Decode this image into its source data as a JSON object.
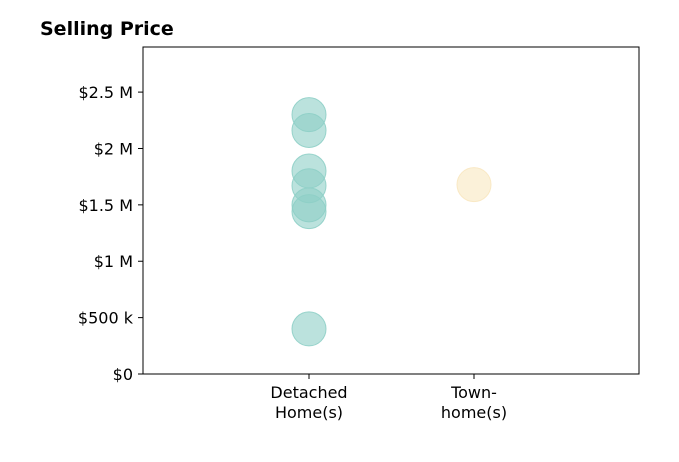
{
  "chart_data": {
    "type": "scatter",
    "title": "Selling Price",
    "xlabel": "",
    "ylabel": "",
    "categories": [
      [
        "Detached",
        "Home(s)"
      ],
      [
        "Town-",
        "home(s)"
      ]
    ],
    "y_ticks": [
      0,
      500000,
      1000000,
      1500000,
      2000000,
      2500000
    ],
    "y_tick_labels": [
      "$0",
      "$500 k",
      "$1 M",
      "$1.5 M",
      "$2 M",
      "$2.5 M"
    ],
    "ylim": [
      0,
      2900000
    ],
    "grid": false,
    "series": [
      {
        "category_index": 0,
        "color": "#8ecfc7",
        "values": [
          2300000,
          2160000,
          1800000,
          1670000,
          1500000,
          1440000,
          400000
        ]
      },
      {
        "category_index": 1,
        "color": "#f8e7c0",
        "values": [
          1680000
        ]
      }
    ]
  }
}
